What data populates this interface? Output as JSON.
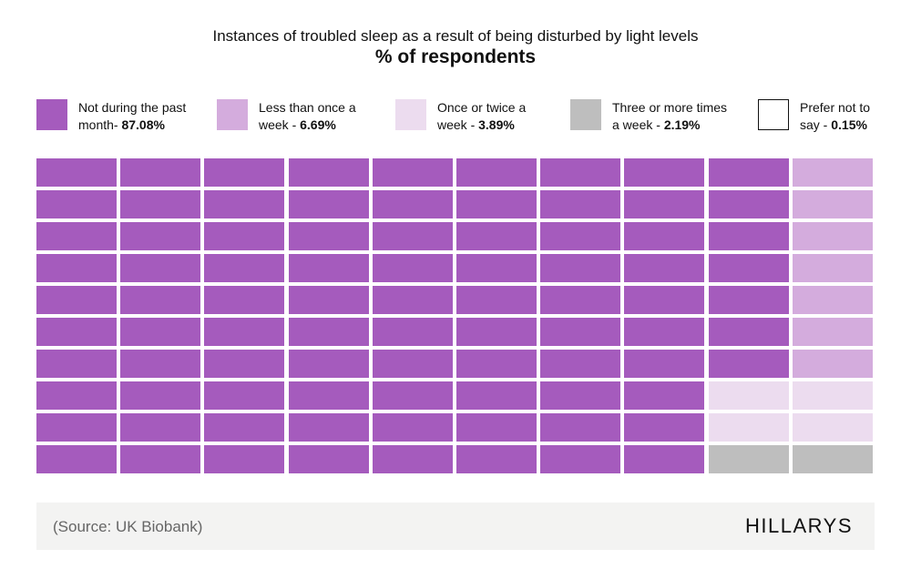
{
  "chart_data": {
    "type": "waffle",
    "title": "Instances of troubled sleep as a result of being disturbed by light levels",
    "subtitle": "% of respondents",
    "categories": [
      {
        "label_a": "Not during the past",
        "label_b": "month- ",
        "value_text": "87.08%",
        "value": 87.08,
        "cells": 87,
        "color": "#a55bbd"
      },
      {
        "label_a": "Less than once a",
        "label_b": "week - ",
        "value_text": "6.69%",
        "value": 6.69,
        "cells": 7,
        "color": "#d4acdd"
      },
      {
        "label_a": "Once or twice a",
        "label_b": "week - ",
        "value_text": "3.89%",
        "value": 3.89,
        "cells": 4,
        "color": "#ecdcef"
      },
      {
        "label_a": "Three or more times",
        "label_b": "a week - ",
        "value_text": "2.19%",
        "value": 2.19,
        "cells": 2,
        "color": "#bebebe"
      },
      {
        "label_a": "Prefer not to",
        "label_b": "say - ",
        "value_text": "0.15%",
        "value": 0.15,
        "cells": 0,
        "color": "#ffffff"
      }
    ],
    "grid_rows": [
      [
        0,
        0,
        0,
        0,
        0,
        0,
        0,
        0,
        0,
        1
      ],
      [
        0,
        0,
        0,
        0,
        0,
        0,
        0,
        0,
        0,
        1
      ],
      [
        0,
        0,
        0,
        0,
        0,
        0,
        0,
        0,
        0,
        1
      ],
      [
        0,
        0,
        0,
        0,
        0,
        0,
        0,
        0,
        0,
        1
      ],
      [
        0,
        0,
        0,
        0,
        0,
        0,
        0,
        0,
        0,
        1
      ],
      [
        0,
        0,
        0,
        0,
        0,
        0,
        0,
        0,
        0,
        1
      ],
      [
        0,
        0,
        0,
        0,
        0,
        0,
        0,
        0,
        0,
        1
      ],
      [
        0,
        0,
        0,
        0,
        0,
        0,
        0,
        0,
        2,
        2
      ],
      [
        0,
        0,
        0,
        0,
        0,
        0,
        0,
        0,
        2,
        2
      ],
      [
        0,
        0,
        0,
        0,
        0,
        0,
        0,
        0,
        3,
        3
      ]
    ]
  },
  "footer": {
    "source": "(Source: UK Biobank)",
    "logo": "HILLARYS"
  }
}
